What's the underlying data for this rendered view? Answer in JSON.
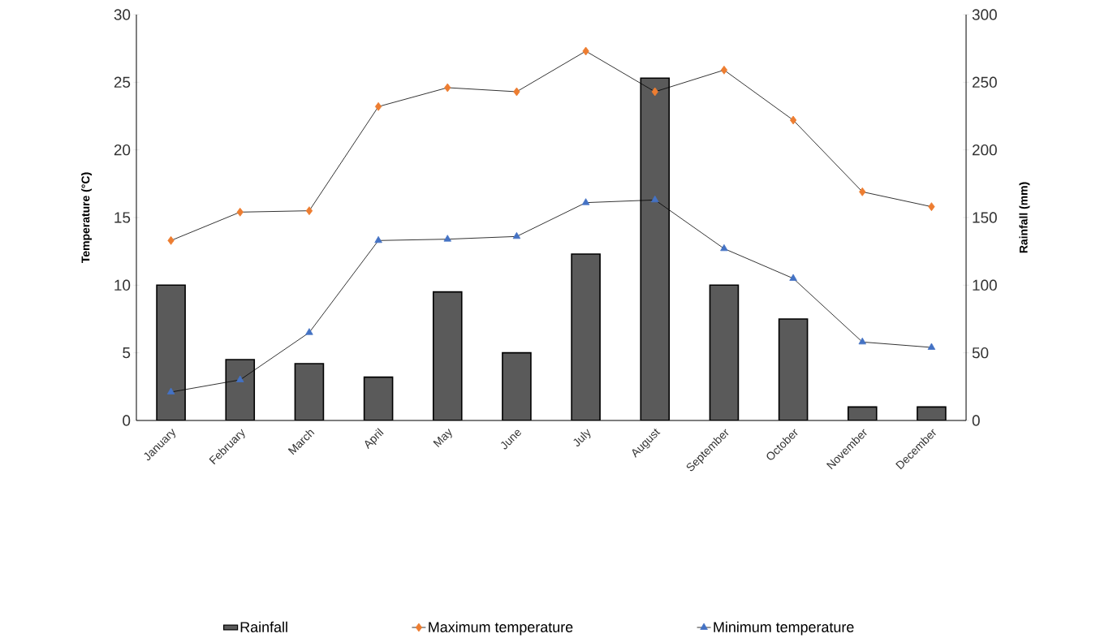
{
  "chart_data": {
    "type": "bar",
    "categories": [
      "January",
      "February",
      "March",
      "April",
      "May",
      "June",
      "July",
      "August",
      "September",
      "October",
      "November",
      "December"
    ],
    "ylabel": "Temperature  (°C)",
    "y2label": "Rainfall  (mm)",
    "ylim": [
      0,
      30
    ],
    "yticks": [
      0,
      5,
      10,
      15,
      20,
      25,
      30
    ],
    "y2lim": [
      0,
      300
    ],
    "y2ticks": [
      0,
      50,
      100,
      150,
      200,
      250,
      300
    ],
    "grid": false,
    "legend": "bottom",
    "series": [
      {
        "name": "Rainfall",
        "axis": "y2",
        "color": "#5a5a5a",
        "values": [
          100,
          45,
          42,
          32,
          95,
          50,
          123,
          253,
          100,
          75,
          10,
          10
        ]
      },
      {
        "name": "Maximum temperature",
        "type": "line",
        "color": "#ed7d31",
        "marker": "diamond",
        "values": [
          13.3,
          15.4,
          15.5,
          23.2,
          24.6,
          24.3,
          27.3,
          24.3,
          25.9,
          22.2,
          16.9,
          15.8
        ]
      },
      {
        "name": "Minimum temperature",
        "type": "line",
        "color": "#4472c4",
        "marker": "triangle",
        "values": [
          2.1,
          3.0,
          6.5,
          13.3,
          13.4,
          13.6,
          16.1,
          16.3,
          12.7,
          10.5,
          5.8,
          5.4
        ]
      }
    ]
  }
}
